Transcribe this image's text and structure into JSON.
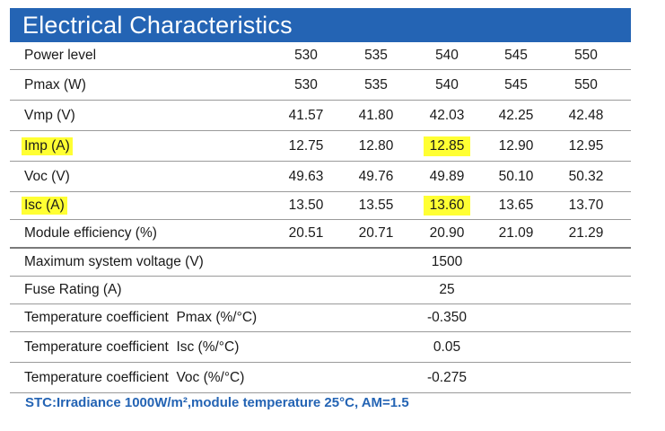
{
  "title": "Electrical Characteristics",
  "columns": [
    "530",
    "535",
    "540",
    "545",
    "550"
  ],
  "rows": [
    {
      "label": "Power level",
      "values": [
        "530",
        "535",
        "540",
        "545",
        "550"
      ]
    },
    {
      "label": "Pmax (W)",
      "values": [
        "530",
        "535",
        "540",
        "545",
        "550"
      ]
    },
    {
      "label": "Vmp (V)",
      "values": [
        "41.57",
        "41.80",
        "42.03",
        "42.25",
        "42.48"
      ]
    },
    {
      "label": "Imp (A)",
      "values": [
        "12.75",
        "12.80",
        "12.85",
        "12.90",
        "12.95"
      ],
      "highlight_label": true,
      "highlight_col": 2
    },
    {
      "label": "Voc (V)",
      "values": [
        "49.63",
        "49.76",
        "49.89",
        "50.10",
        "50.32"
      ]
    },
    {
      "label": "Isc (A)",
      "values": [
        "13.50",
        "13.55",
        "13.60",
        "13.65",
        "13.70"
      ],
      "highlight_label": true,
      "highlight_col": 2
    },
    {
      "label": "Module efficiency (%)",
      "values": [
        "20.51",
        "20.71",
        "20.90",
        "21.09",
        "21.29"
      ]
    }
  ],
  "single_rows": [
    {
      "label": "Maximum system voltage (V)",
      "value": "1500"
    },
    {
      "label": "Fuse Rating (A)",
      "value": "25"
    },
    {
      "label": "Temperature coefficient  Pmax (%/°C)",
      "value": "-0.350"
    },
    {
      "label": "Temperature coefficient  Isc (%/°C)",
      "value": "0.05"
    },
    {
      "label": "Temperature coefficient  Voc (%/°C)",
      "value": "-0.275"
    }
  ],
  "footnote": "STC:Irradiance 1000W/m²,module temperature 25°C, AM=1.5",
  "colors": {
    "header_bg": "#2464b4",
    "highlight": "#ffff33",
    "note": "#2464b4"
  }
}
